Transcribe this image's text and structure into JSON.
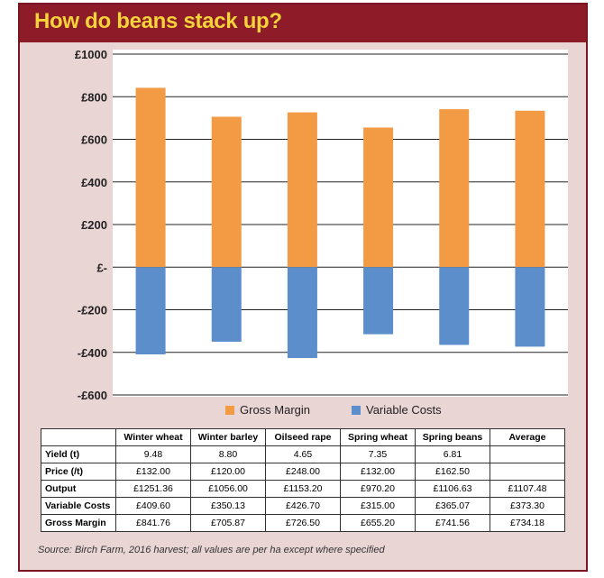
{
  "title": "How do beans stack up?",
  "chart_data": {
    "type": "bar",
    "stacked": true,
    "categories": [
      "Winter wheat",
      "Winter barley",
      "Oilseed rape",
      "Spring wheat",
      "Spring beans",
      "Average"
    ],
    "series": [
      {
        "name": "Gross Margin",
        "color": "#f39a45",
        "values": [
          841.76,
          705.87,
          726.5,
          655.2,
          741.56,
          734.18
        ]
      },
      {
        "name": "Variable Costs",
        "color": "#5b8ecb",
        "values": [
          -409.6,
          -350.13,
          -426.7,
          -315.0,
          -365.07,
          -373.3
        ]
      }
    ],
    "yticks": [
      "£1000",
      "£800",
      "£600",
      "£400",
      "£200",
      "£-",
      "-£200",
      "-£400",
      "-£600"
    ],
    "ylim": [
      -600,
      1000
    ],
    "grid": true,
    "legend_position": "bottom"
  },
  "table": {
    "headers": [
      "",
      "Winter wheat",
      "Winter barley",
      "Oilseed rape",
      "Spring wheat",
      "Spring beans",
      "Average"
    ],
    "rows": [
      {
        "label": "Yield (t)",
        "values": [
          "9.48",
          "8.80",
          "4.65",
          "7.35",
          "6.81",
          ""
        ]
      },
      {
        "label": "Price (/t)",
        "values": [
          "£132.00",
          "£120.00",
          "£248.00",
          "£132.00",
          "£162.50",
          ""
        ]
      },
      {
        "label": "Output",
        "values": [
          "£1251.36",
          "£1056.00",
          "£1153.20",
          "£970.20",
          "£1106.63",
          "£1107.48"
        ]
      },
      {
        "label": "Variable Costs",
        "values": [
          "£409.60",
          "£350.13",
          "£426.70",
          "£315.00",
          "£365.07",
          "£373.30"
        ]
      },
      {
        "label": "Gross Margin",
        "values": [
          "£841.76",
          "£705.87",
          "£726.50",
          "£655.20",
          "£741.56",
          "£734.18"
        ]
      }
    ]
  },
  "source": "Source: Birch Farm, 2016 harvest; all values are per ha except where specified"
}
